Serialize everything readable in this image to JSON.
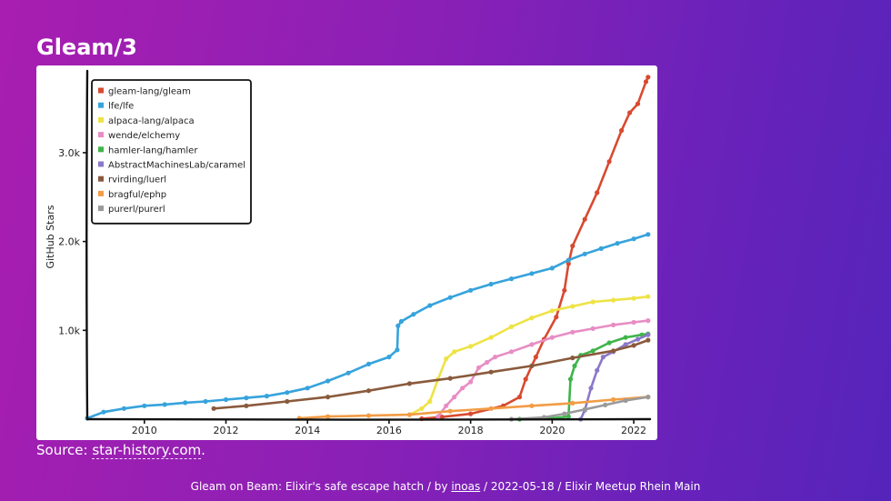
{
  "slide": {
    "title": "Gleam/3"
  },
  "source": {
    "prefix": "Source: ",
    "link": "star-history.com",
    "suffix": "."
  },
  "footer": {
    "pre": "Gleam on Beam: Elixir's safe escape hatch / by ",
    "author": "inoas",
    "post": " / 2022-05-18 / Elixir Meetup Rhein Main"
  },
  "chart_data": {
    "type": "line",
    "title": "",
    "xlabel": "",
    "ylabel": "GitHub Stars",
    "xlim": [
      2008.6,
      2022.4
    ],
    "ylim": [
      0,
      3900
    ],
    "x_ticks": [
      2010,
      2012,
      2014,
      2016,
      2018,
      2020,
      2022
    ],
    "x_tick_labels": [
      "2010",
      "2012",
      "2014",
      "2016",
      "2018",
      "2020",
      "2022"
    ],
    "y_ticks": [
      1000,
      2000,
      3000
    ],
    "y_tick_labels": [
      "1.0k",
      "2.0k",
      "3.0k"
    ],
    "grid": false,
    "legend_position": "top-left",
    "series": [
      {
        "name": "gleam-lang/gleam",
        "color": "#d84a30",
        "points": [
          [
            2016.8,
            5
          ],
          [
            2017.3,
            25
          ],
          [
            2018,
            60
          ],
          [
            2018.8,
            150
          ],
          [
            2019.2,
            250
          ],
          [
            2019.35,
            450
          ],
          [
            2019.6,
            700
          ],
          [
            2019.8,
            900
          ],
          [
            2020.1,
            1150
          ],
          [
            2020.3,
            1450
          ],
          [
            2020.4,
            1750
          ],
          [
            2020.5,
            1950
          ],
          [
            2020.8,
            2250
          ],
          [
            2021.1,
            2550
          ],
          [
            2021.4,
            2900
          ],
          [
            2021.7,
            3250
          ],
          [
            2021.9,
            3450
          ],
          [
            2022.1,
            3550
          ],
          [
            2022.3,
            3800
          ],
          [
            2022.35,
            3850
          ]
        ]
      },
      {
        "name": "lfe/lfe",
        "color": "#36a3dc",
        "points": [
          [
            2008.6,
            10
          ],
          [
            2009,
            80
          ],
          [
            2009.5,
            120
          ],
          [
            2010,
            150
          ],
          [
            2010.5,
            165
          ],
          [
            2011,
            185
          ],
          [
            2011.5,
            200
          ],
          [
            2012,
            220
          ],
          [
            2012.5,
            240
          ],
          [
            2013,
            260
          ],
          [
            2013.5,
            300
          ],
          [
            2014,
            350
          ],
          [
            2014.5,
            430
          ],
          [
            2015,
            520
          ],
          [
            2015.5,
            620
          ],
          [
            2016,
            700
          ],
          [
            2016.2,
            780
          ],
          [
            2016.22,
            1050
          ],
          [
            2016.3,
            1100
          ],
          [
            2016.6,
            1180
          ],
          [
            2017,
            1280
          ],
          [
            2017.5,
            1370
          ],
          [
            2018,
            1450
          ],
          [
            2018.5,
            1520
          ],
          [
            2019,
            1580
          ],
          [
            2019.5,
            1640
          ],
          [
            2020,
            1700
          ],
          [
            2020.4,
            1790
          ],
          [
            2020.8,
            1860
          ],
          [
            2021.2,
            1920
          ],
          [
            2021.6,
            1980
          ],
          [
            2022,
            2030
          ],
          [
            2022.35,
            2080
          ]
        ]
      },
      {
        "name": "alpaca-lang/alpaca",
        "color": "#eee346",
        "points": [
          [
            2016.5,
            50
          ],
          [
            2016.8,
            120
          ],
          [
            2017,
            200
          ],
          [
            2017.2,
            450
          ],
          [
            2017.4,
            680
          ],
          [
            2017.6,
            760
          ],
          [
            2018,
            820
          ],
          [
            2018.5,
            920
          ],
          [
            2019,
            1040
          ],
          [
            2019.5,
            1140
          ],
          [
            2020,
            1220
          ],
          [
            2020.5,
            1270
          ],
          [
            2021,
            1320
          ],
          [
            2021.5,
            1340
          ],
          [
            2022,
            1360
          ],
          [
            2022.35,
            1380
          ]
        ]
      },
      {
        "name": "wende/elchemy",
        "color": "#e88dc4",
        "points": [
          [
            2017.2,
            30
          ],
          [
            2017.4,
            150
          ],
          [
            2017.6,
            250
          ],
          [
            2017.8,
            350
          ],
          [
            2018,
            420
          ],
          [
            2018.2,
            580
          ],
          [
            2018.4,
            640
          ],
          [
            2018.6,
            700
          ],
          [
            2019,
            760
          ],
          [
            2019.5,
            840
          ],
          [
            2020,
            920
          ],
          [
            2020.5,
            980
          ],
          [
            2021,
            1020
          ],
          [
            2021.5,
            1060
          ],
          [
            2022,
            1090
          ],
          [
            2022.35,
            1110
          ]
        ]
      },
      {
        "name": "hamler-lang/hamler",
        "color": "#3fb54a",
        "points": [
          [
            2019.2,
            0
          ],
          [
            2020,
            10
          ],
          [
            2020.4,
            30
          ],
          [
            2020.45,
            450
          ],
          [
            2020.55,
            600
          ],
          [
            2020.7,
            720
          ],
          [
            2021,
            770
          ],
          [
            2021.4,
            860
          ],
          [
            2021.8,
            920
          ],
          [
            2022.2,
            950
          ],
          [
            2022.35,
            960
          ]
        ]
      },
      {
        "name": "AbstractMachinesLab/caramel",
        "color": "#8b78c8",
        "points": [
          [
            2020.7,
            0
          ],
          [
            2020.8,
            100
          ],
          [
            2020.95,
            350
          ],
          [
            2021.1,
            550
          ],
          [
            2021.25,
            700
          ],
          [
            2021.5,
            760
          ],
          [
            2021.8,
            840
          ],
          [
            2022.1,
            900
          ],
          [
            2022.35,
            950
          ]
        ]
      },
      {
        "name": "rvirding/luerl",
        "color": "#8a5a3c",
        "points": [
          [
            2011.7,
            120
          ],
          [
            2012.5,
            150
          ],
          [
            2013.5,
            200
          ],
          [
            2014.5,
            250
          ],
          [
            2015.5,
            320
          ],
          [
            2016.5,
            400
          ],
          [
            2017.5,
            460
          ],
          [
            2018.5,
            530
          ],
          [
            2019.5,
            600
          ],
          [
            2020.5,
            690
          ],
          [
            2021.5,
            770
          ],
          [
            2022,
            830
          ],
          [
            2022.35,
            890
          ]
        ]
      },
      {
        "name": "bragful/ephp",
        "color": "#f29c45",
        "points": [
          [
            2013.8,
            10
          ],
          [
            2014.5,
            30
          ],
          [
            2015.5,
            40
          ],
          [
            2016.5,
            50
          ],
          [
            2017.5,
            90
          ],
          [
            2018.5,
            120
          ],
          [
            2019.5,
            150
          ],
          [
            2020.5,
            180
          ],
          [
            2021.5,
            220
          ],
          [
            2022.35,
            250
          ]
        ]
      },
      {
        "name": "purerl/purerl",
        "color": "#9a9a9a",
        "points": [
          [
            2019,
            0
          ],
          [
            2019.8,
            20
          ],
          [
            2020.3,
            60
          ],
          [
            2020.8,
            110
          ],
          [
            2021.3,
            160
          ],
          [
            2021.8,
            210
          ],
          [
            2022.35,
            250
          ]
        ]
      }
    ]
  }
}
